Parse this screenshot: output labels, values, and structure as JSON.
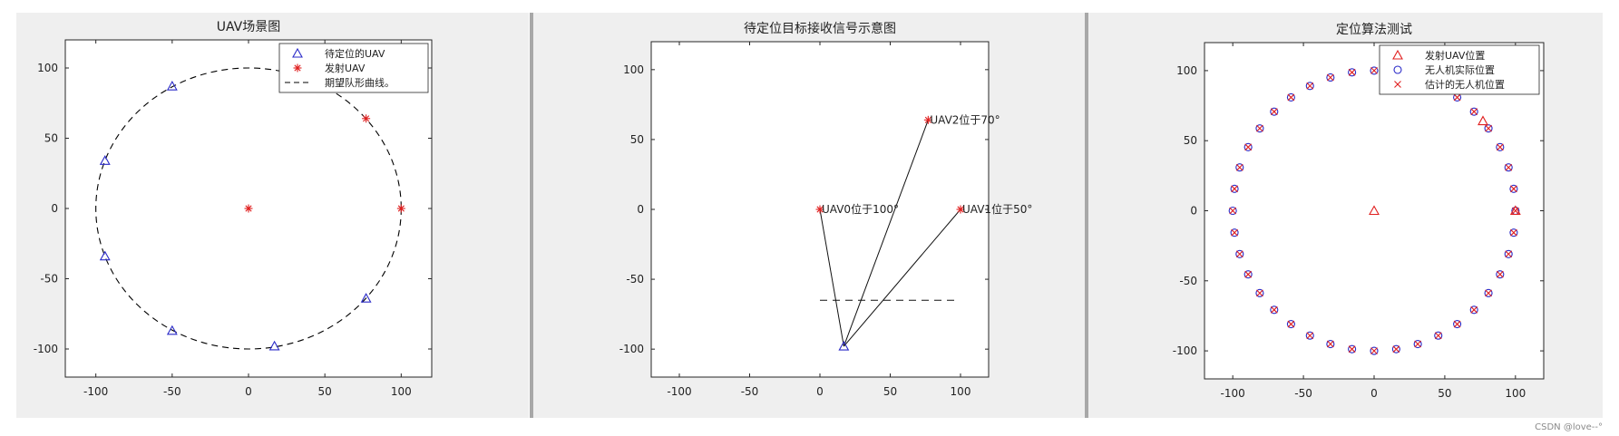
{
  "chart_data": [
    {
      "type": "scatter",
      "title": "UAV场景图",
      "xlim": [
        -120,
        120
      ],
      "ylim": [
        -120,
        120
      ],
      "xticks": [
        -100,
        -50,
        0,
        50,
        100
      ],
      "yticks": [
        -100,
        -50,
        0,
        50,
        100
      ],
      "grid": false,
      "legend_position": "top-right",
      "legend": [
        "待定位的UAV",
        "发射UAV",
        "期望队形曲线。"
      ],
      "series": [
        {
          "name": "待定位的UAV",
          "marker": "triangle",
          "color": "#2a2ac8",
          "points": [
            [
              -50,
              87
            ],
            [
              -94,
              34
            ],
            [
              -94,
              -34
            ],
            [
              -50,
              -87
            ],
            [
              17,
              -98
            ],
            [
              77,
              -64
            ]
          ]
        },
        {
          "name": "发射UAV",
          "marker": "asterisk",
          "color": "#e02020",
          "points": [
            [
              0,
              0
            ],
            [
              100,
              0
            ],
            [
              77,
              64
            ]
          ]
        },
        {
          "name": "期望队形曲线。",
          "style": "dashed-circle",
          "color": "#000000",
          "center": [
            0,
            0
          ],
          "radius": 100
        }
      ]
    },
    {
      "type": "line",
      "title": "待定位目标接收信号示意图",
      "xlim": [
        -120,
        120
      ],
      "ylim": [
        -120,
        120
      ],
      "xticks": [
        -100,
        -50,
        0,
        50,
        100
      ],
      "yticks": [
        -100,
        -50,
        0,
        50,
        100
      ],
      "grid": false,
      "target": {
        "x": 17,
        "y": -98,
        "marker": "triangle",
        "color": "#2a2ac8"
      },
      "emitters": [
        {
          "x": 0,
          "y": 0,
          "label": "UAV0位于100°"
        },
        {
          "x": 100,
          "y": 0,
          "label": "UAV1位于50°"
        },
        {
          "x": 77,
          "y": 64,
          "label": "UAV2位于70°"
        }
      ],
      "dashed_line": {
        "x": [
          0,
          97
        ],
        "y": [
          -65,
          -65
        ]
      }
    },
    {
      "type": "scatter",
      "title": "定位算法测试",
      "xlim": [
        -120,
        120
      ],
      "ylim": [
        -120,
        120
      ],
      "xticks": [
        -100,
        -50,
        0,
        50,
        100
      ],
      "yticks": [
        -100,
        -50,
        0,
        50,
        100
      ],
      "grid": false,
      "legend_position": "top-right",
      "legend": [
        "发射UAV位置",
        "无人机实际位置",
        "估计的无人机位置"
      ],
      "series": [
        {
          "name": "发射UAV位置",
          "marker": "triangle",
          "color": "#e02020",
          "points": [
            [
              0,
              0
            ],
            [
              77,
              64
            ],
            [
              100,
              0
            ]
          ]
        },
        {
          "name": "无人机实际位置",
          "marker": "circle",
          "color": "#2a2ac8",
          "ring": {
            "center": [
              0,
              0
            ],
            "radius": 100,
            "count": 40
          }
        },
        {
          "name": "估计的无人机位置",
          "marker": "x",
          "color": "#e02020",
          "ring": {
            "center": [
              0,
              0
            ],
            "radius": 100,
            "count": 40
          }
        }
      ]
    }
  ],
  "watermark": "CSDN @love--°"
}
